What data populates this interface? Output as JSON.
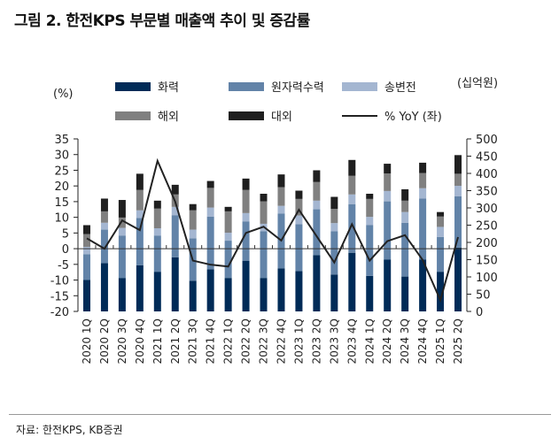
{
  "title": "그림 2. 한전KPS 부문별 매출액 추이 및 증감률",
  "source": "자료: 한전KPS, KB증권",
  "chart_data": {
    "type": "bar",
    "stacked": true,
    "left_axis_unit": "(%)",
    "right_axis_unit": "(십억원)",
    "left_ylim": [
      -20,
      35
    ],
    "left_ticks": [
      -20,
      -15,
      -10,
      -5,
      0,
      5,
      10,
      15,
      20,
      25,
      30,
      35
    ],
    "right_ylim": [
      0,
      500
    ],
    "right_ticks": [
      0,
      50,
      100,
      150,
      200,
      250,
      300,
      350,
      400,
      450,
      500
    ],
    "grid": false,
    "legend_placement": "top",
    "categories": [
      "2020 1Q",
      "2020 2Q",
      "2020 3Q",
      "2020 4Q",
      "2021 1Q",
      "2021 2Q",
      "2021 3Q",
      "2021 4Q",
      "2022 1Q",
      "2022 2Q",
      "2022 3Q",
      "2022 4Q",
      "2023 1Q",
      "2023 2Q",
      "2023 3Q",
      "2023 4Q",
      "2024 1Q",
      "2024 2Q",
      "2024 3Q",
      "2024 4Q",
      "2025 1Q",
      "2025 2Q"
    ],
    "series": [
      {
        "name": "화력",
        "axis": "right",
        "color": "#002b57",
        "values": [
          91,
          140,
          97,
          134,
          115,
          157,
          89,
          122,
          97,
          147,
          97,
          125,
          117,
          163,
          107,
          170,
          103,
          150,
          101,
          150,
          115,
          185
        ]
      },
      {
        "name": "원자력수력",
        "axis": "right",
        "color": "#6283a8",
        "values": [
          75,
          97,
          123,
          137,
          105,
          122,
          123,
          153,
          108,
          114,
          135,
          159,
          136,
          133,
          125,
          141,
          147,
          169,
          156,
          177,
          101,
          149
        ]
      },
      {
        "name": "송변전",
        "axis": "right",
        "color": "#a4b6d1",
        "values": [
          21,
          20,
          22,
          22,
          21,
          24,
          25,
          26,
          23,
          24,
          22,
          22,
          25,
          25,
          24,
          28,
          24,
          30,
          31,
          30,
          29,
          30
        ]
      },
      {
        "name": "해외",
        "axis": "right",
        "color": "#808080",
        "values": [
          37,
          33,
          30,
          59,
          57,
          36,
          56,
          57,
          62,
          67,
          65,
          54,
          48,
          54,
          41,
          54,
          52,
          51,
          33,
          44,
          30,
          35
        ]
      },
      {
        "name": "대외",
        "axis": "right",
        "color": "#1f1f1f",
        "values": [
          26,
          37,
          51,
          47,
          23,
          28,
          18,
          20,
          13,
          33,
          22,
          37,
          24,
          34,
          35,
          46,
          15,
          28,
          33,
          30,
          13,
          54
        ]
      },
      {
        "name": "% YoY (좌)",
        "type": "line",
        "axis": "left",
        "color": "#222222",
        "values": [
          3.3,
          0,
          9.0,
          5.9,
          28.0,
          15.0,
          -3.8,
          -5.1,
          -5.7,
          5.0,
          7.0,
          2.6,
          12.4,
          4.0,
          -4.4,
          7.8,
          -3.8,
          2.4,
          4.3,
          -3.6,
          -16.4,
          3.7
        ]
      }
    ]
  }
}
